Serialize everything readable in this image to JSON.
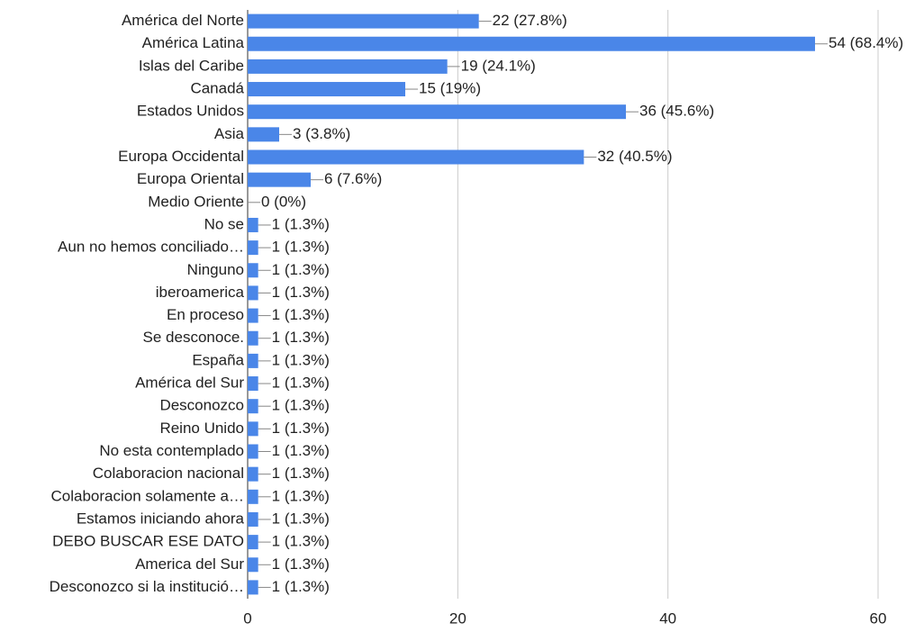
{
  "chart_data": {
    "type": "barh",
    "categories": [
      "América del Norte",
      "América Latina",
      "Islas del Caribe",
      "Canadá",
      "Estados Unidos",
      "Asia",
      "Europa Occidental",
      "Europa Oriental",
      "Medio Oriente",
      "No se",
      "Aun no hemos conciliado…",
      "Ninguno",
      "iberoamerica",
      "En proceso",
      "Se desconoce.",
      "España",
      "América del Sur",
      "Desconozco",
      "Reino Unido",
      "No esta contemplado",
      "Colaboracion nacional",
      "Colaboracion solamente a…",
      "Estamos iniciando ahora",
      "DEBO BUSCAR ESE DATO",
      "America del Sur",
      "Desconozco si la institució…"
    ],
    "values": [
      22,
      54,
      19,
      15,
      36,
      3,
      32,
      6,
      0,
      1,
      1,
      1,
      1,
      1,
      1,
      1,
      1,
      1,
      1,
      1,
      1,
      1,
      1,
      1,
      1,
      1
    ],
    "value_labels": [
      "22 (27.8%)",
      "54 (68.4%)",
      "19 (24.1%)",
      "15 (19%)",
      "36 (45.6%)",
      "3 (3.8%)",
      "32 (40.5%)",
      "6 (7.6%)",
      "0 (0%)",
      "1 (1.3%)",
      "1 (1.3%)",
      "1 (1.3%)",
      "1 (1.3%)",
      "1 (1.3%)",
      "1 (1.3%)",
      "1 (1.3%)",
      "1 (1.3%)",
      "1 (1.3%)",
      "1 (1.3%)",
      "1 (1.3%)",
      "1 (1.3%)",
      "1 (1.3%)",
      "1 (1.3%)",
      "1 (1.3%)",
      "1 (1.3%)",
      "1 (1.3%)"
    ],
    "color": "#4a86e8",
    "xlim": [
      0,
      60
    ],
    "xticks": [
      0,
      20,
      40,
      60
    ],
    "grid": true
  }
}
